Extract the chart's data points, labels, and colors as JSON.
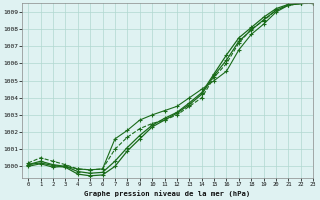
{
  "title": "Graphe pression niveau de la mer (hPa)",
  "bg_color": "#dff2f2",
  "grid_color": "#b0d8d0",
  "line_color": "#1a6b1a",
  "xlim": [
    -0.5,
    23
  ],
  "ylim": [
    999.3,
    1009.5
  ],
  "xticks": [
    0,
    1,
    2,
    3,
    4,
    5,
    6,
    7,
    8,
    9,
    10,
    11,
    12,
    13,
    14,
    15,
    16,
    17,
    18,
    19,
    20,
    21,
    22,
    23
  ],
  "yticks": [
    1000,
    1001,
    1002,
    1003,
    1004,
    1005,
    1006,
    1007,
    1008,
    1009
  ],
  "series": [
    {
      "x": [
        0,
        1,
        2,
        3,
        4,
        5,
        6,
        7,
        8,
        9,
        10,
        11,
        12,
        13,
        14,
        15,
        16,
        17,
        18,
        19,
        20,
        21,
        22,
        23
      ],
      "y": [
        1000.2,
        1000.5,
        1000.3,
        1000.1,
        999.85,
        999.8,
        999.85,
        1001.0,
        1001.7,
        1002.2,
        1002.5,
        1002.7,
        1003.0,
        1003.5,
        1004.0,
        1005.2,
        1006.0,
        1007.2,
        1008.0,
        1008.5,
        1009.1,
        1009.4,
        1009.5,
        1009.5
      ],
      "linestyle": "--",
      "linewidth": 0.8
    },
    {
      "x": [
        0,
        1,
        2,
        3,
        4,
        5,
        6,
        7,
        8,
        9,
        10,
        11,
        12,
        13,
        14,
        15,
        16,
        17,
        18,
        19,
        20,
        21,
        22,
        23
      ],
      "y": [
        1000.1,
        1000.3,
        1000.1,
        1000.0,
        999.7,
        999.6,
        999.65,
        1000.3,
        1001.1,
        1001.8,
        1002.4,
        1002.8,
        1003.15,
        1003.7,
        1004.3,
        1005.4,
        1006.5,
        1007.5,
        1008.1,
        1008.7,
        1009.2,
        1009.45,
        1009.5,
        1009.55
      ],
      "linestyle": "-",
      "linewidth": 0.9
    },
    {
      "x": [
        0,
        1,
        2,
        3,
        4,
        5,
        6,
        7,
        8,
        9,
        10,
        11,
        12,
        13,
        14,
        15,
        16,
        17,
        18,
        19,
        20,
        21,
        22,
        23
      ],
      "y": [
        1000.1,
        1000.2,
        1000.05,
        999.95,
        999.55,
        999.45,
        999.5,
        1000.0,
        1000.9,
        1001.6,
        1002.3,
        1002.7,
        1003.1,
        1003.6,
        1004.2,
        1005.3,
        1006.2,
        1007.3,
        1007.95,
        1008.55,
        1009.1,
        1009.4,
        1009.5,
        1009.55
      ],
      "linestyle": "-",
      "linewidth": 0.9
    },
    {
      "x": [
        0,
        1,
        2,
        3,
        4,
        5,
        6,
        7,
        8,
        9,
        10,
        11,
        12,
        13,
        14,
        15,
        16,
        17,
        18,
        19,
        20,
        21,
        22,
        23
      ],
      "y": [
        1000.0,
        1000.15,
        999.95,
        1000.0,
        999.85,
        999.8,
        999.85,
        1001.6,
        1002.1,
        1002.7,
        1003.0,
        1003.25,
        1003.5,
        1004.0,
        1004.5,
        1005.0,
        1005.55,
        1006.8,
        1007.7,
        1008.3,
        1009.0,
        1009.4,
        1009.5,
        1009.6
      ],
      "linestyle": "-",
      "linewidth": 0.8
    }
  ]
}
